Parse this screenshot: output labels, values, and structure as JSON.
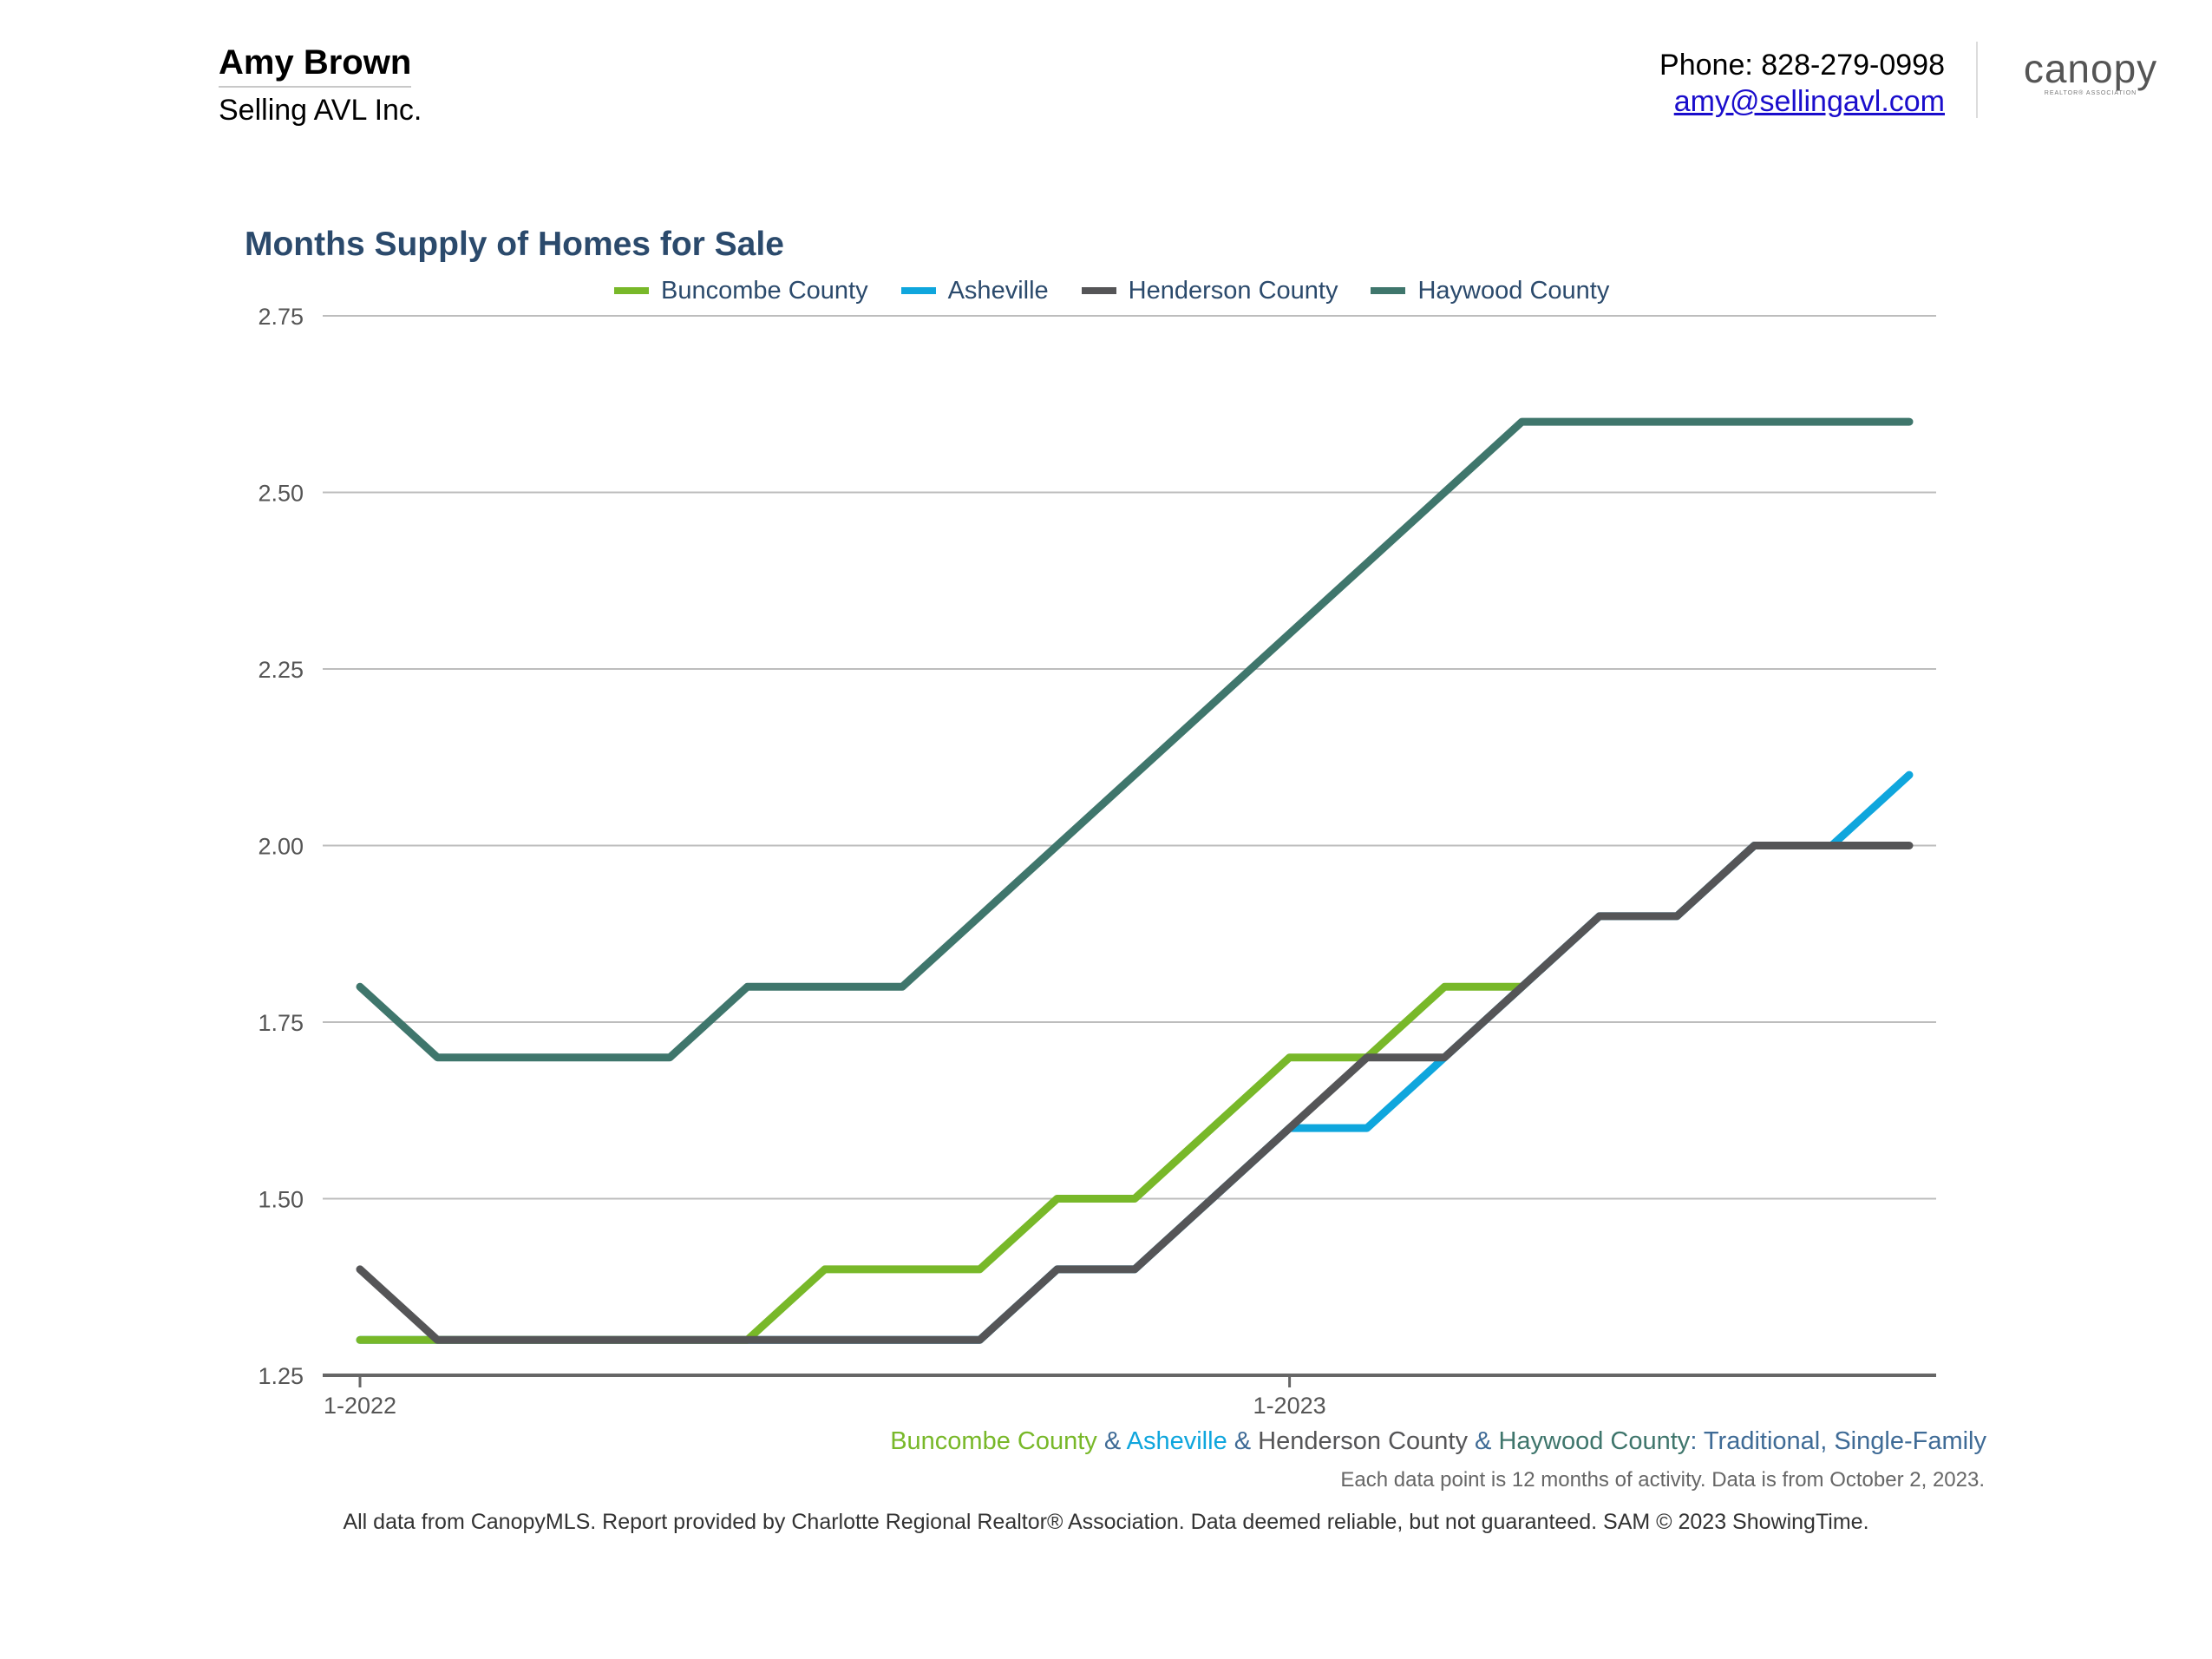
{
  "header": {
    "agent_name": "Amy Brown",
    "company": "Selling AVL Inc.",
    "phone": "Phone: 828-279-0998",
    "email": "amy@sellingavl.com",
    "logo_text": "canopy",
    "logo_subtext": "REALTOR® ASSOCIATION"
  },
  "colors": {
    "title": "#2b4a6c",
    "buncombe": "#78b829",
    "asheville": "#0fa6dd",
    "henderson": "#555557",
    "haywood": "#3f766c",
    "grid": "#bdbdbd",
    "axis": "#666666"
  },
  "chart_data": {
    "type": "line",
    "title": "Months Supply of Homes for Sale",
    "x": [
      "1-2022",
      "2-2022",
      "3-2022",
      "4-2022",
      "5-2022",
      "6-2022",
      "7-2022",
      "8-2022",
      "9-2022",
      "10-2022",
      "11-2022",
      "12-2022",
      "1-2023",
      "2-2023",
      "3-2023",
      "4-2023",
      "5-2023",
      "6-2023",
      "7-2023",
      "8-2023",
      "9-2023"
    ],
    "x_tick_labels": [
      "1-2022",
      "1-2023"
    ],
    "ylim": [
      1.25,
      2.75
    ],
    "y_ticks": [
      "1.25",
      "1.50",
      "1.75",
      "2.00",
      "2.25",
      "2.50",
      "2.75"
    ],
    "grid": true,
    "legend_position": "top",
    "series": [
      {
        "name": "Buncombe County",
        "color_key": "buncombe",
        "values": [
          1.3,
          1.3,
          1.3,
          1.3,
          1.3,
          1.3,
          1.4,
          1.4,
          1.4,
          1.5,
          1.5,
          1.6,
          1.7,
          1.7,
          1.8,
          1.8,
          null,
          null,
          null,
          null,
          null
        ]
      },
      {
        "name": "Asheville",
        "color_key": "asheville",
        "values": [
          1.3,
          1.3,
          1.3,
          1.3,
          1.3,
          1.3,
          1.3,
          1.3,
          1.3,
          1.4,
          1.4,
          1.5,
          1.6,
          1.6,
          1.7,
          1.8,
          1.9,
          1.9,
          2.0,
          2.0,
          2.1
        ]
      },
      {
        "name": "Henderson County",
        "color_key": "henderson",
        "values": [
          1.4,
          1.3,
          1.3,
          1.3,
          1.3,
          1.3,
          1.3,
          1.3,
          1.3,
          1.4,
          1.4,
          1.5,
          1.6,
          1.7,
          1.7,
          1.8,
          1.9,
          1.9,
          2.0,
          2.0,
          2.0
        ]
      },
      {
        "name": "Haywood County",
        "color_key": "haywood",
        "values": [
          1.8,
          1.7,
          1.7,
          1.7,
          1.7,
          1.8,
          1.8,
          1.8,
          1.9,
          2.0,
          2.1,
          2.2,
          2.3,
          2.4,
          2.5,
          2.6,
          2.6,
          2.6,
          2.6,
          2.6,
          2.6
        ]
      }
    ],
    "subtitle_parts": [
      {
        "text": "Buncombe County",
        "color_key": "buncombe"
      },
      {
        "text": " & ",
        "color_key": "title"
      },
      {
        "text": "Asheville",
        "color_key": "asheville"
      },
      {
        "text": " & ",
        "color_key": "title"
      },
      {
        "text": "Henderson County",
        "color_key": "henderson"
      },
      {
        "text": " & ",
        "color_key": "title"
      },
      {
        "text": "Haywood County",
        "color_key": "haywood"
      },
      {
        "text": ": Traditional, Single-Family",
        "color_key": "title"
      }
    ],
    "note": "Each data point is 12 months of activity. Data is from October 2, 2023."
  },
  "footer": "All data from CanopyMLS. Report provided by Charlotte Regional Realtor® Association. Data deemed reliable, but not guaranteed. SAM © 2023 ShowingTime."
}
